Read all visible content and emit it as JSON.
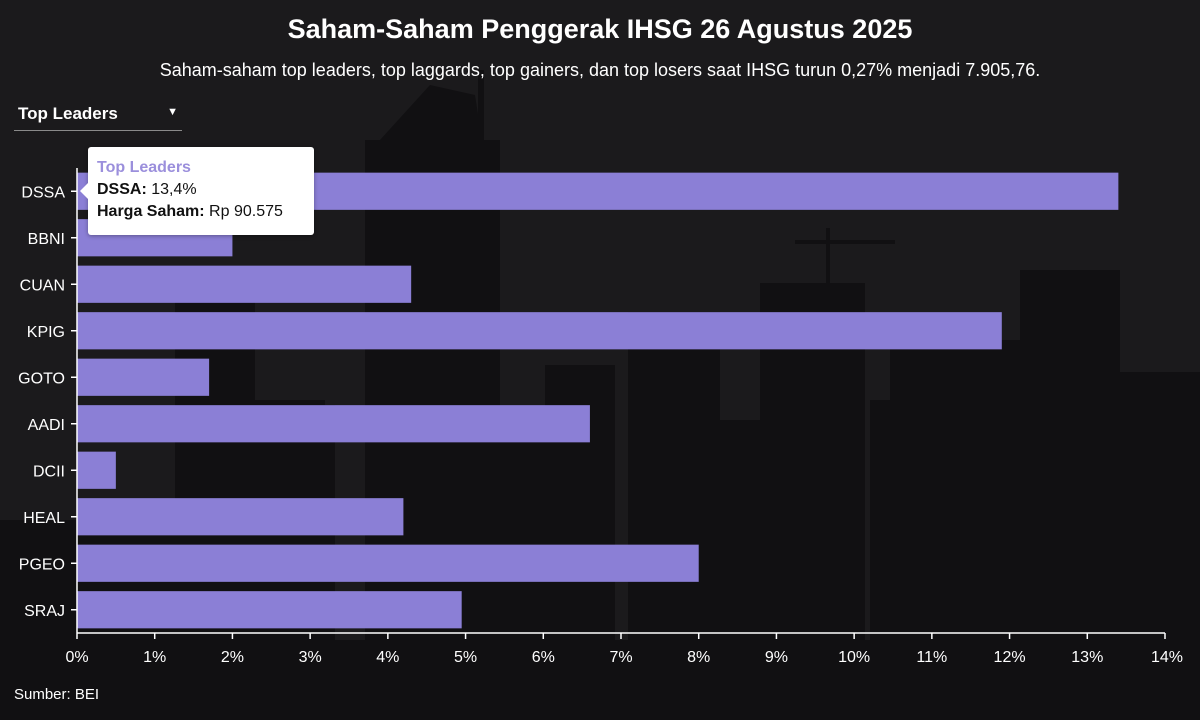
{
  "header": {
    "title": "Saham-Saham Penggerak IHSG 26 Agustus 2025",
    "subtitle": "Saham-saham top leaders, top laggards, top gainers, dan top losers saat IHSG turun 0,27% menjadi 7.905,76."
  },
  "dropdown": {
    "selected": "Top Leaders"
  },
  "tooltip": {
    "title": "Top Leaders",
    "line1_label": "DSSA:",
    "line1_value": "13,4%",
    "line2_label": "Harga Saham:",
    "line2_value": "Rp 90.575"
  },
  "source": "Sumber: BEI",
  "colors": {
    "bar": "#8b7fd6",
    "axis": "#ffffff",
    "background": "#1b1a1c"
  },
  "chart_data": {
    "type": "bar",
    "orientation": "horizontal",
    "title": "Saham-Saham Penggerak IHSG 26 Agustus 2025",
    "categories": [
      "DSSA",
      "BBNI",
      "CUAN",
      "KPIG",
      "GOTO",
      "AADI",
      "DCII",
      "HEAL",
      "PGEO",
      "SRAJ"
    ],
    "values": [
      13.4,
      2.0,
      4.3,
      11.9,
      1.7,
      6.6,
      0.5,
      4.2,
      8.0,
      4.95
    ],
    "xlim": [
      0,
      14
    ],
    "x_ticks": [
      0,
      1,
      2,
      3,
      4,
      5,
      6,
      7,
      8,
      9,
      10,
      11,
      12,
      13,
      14
    ],
    "x_tick_labels": [
      "0%",
      "1%",
      "2%",
      "3%",
      "4%",
      "5%",
      "6%",
      "7%",
      "8%",
      "9%",
      "10%",
      "11%",
      "12%",
      "13%",
      "14%"
    ],
    "xlabel": "",
    "ylabel": "",
    "grid": false,
    "legend": "none"
  }
}
